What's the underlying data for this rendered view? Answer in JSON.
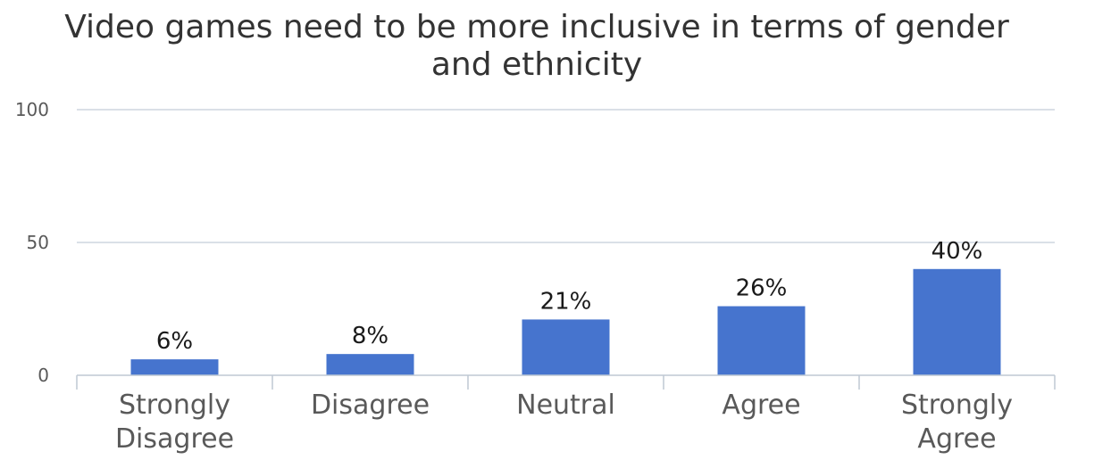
{
  "chart_data": {
    "type": "bar",
    "title_lines": [
      "Video games need to be more inclusive in terms of gender",
      "and ethnicity"
    ],
    "categories": [
      [
        "Strongly",
        "Disagree"
      ],
      [
        "Disagree"
      ],
      [
        "Neutral"
      ],
      [
        "Agree"
      ],
      [
        "Strongly",
        "Agree"
      ]
    ],
    "values": [
      6,
      8,
      21,
      26,
      40
    ],
    "data_labels": [
      "6%",
      "8%",
      "21%",
      "26%",
      "40%"
    ],
    "ylim": [
      0,
      100
    ],
    "yticks": [
      0,
      50,
      100
    ],
    "ytick_labels": [
      "0",
      "50",
      "100"
    ],
    "xlabel": "",
    "ylabel": "",
    "grid": true,
    "legend": "none",
    "colors": {
      "bar": "#4674CE",
      "grid": "#CDD6DF",
      "axis": "#BFC9D3"
    }
  }
}
